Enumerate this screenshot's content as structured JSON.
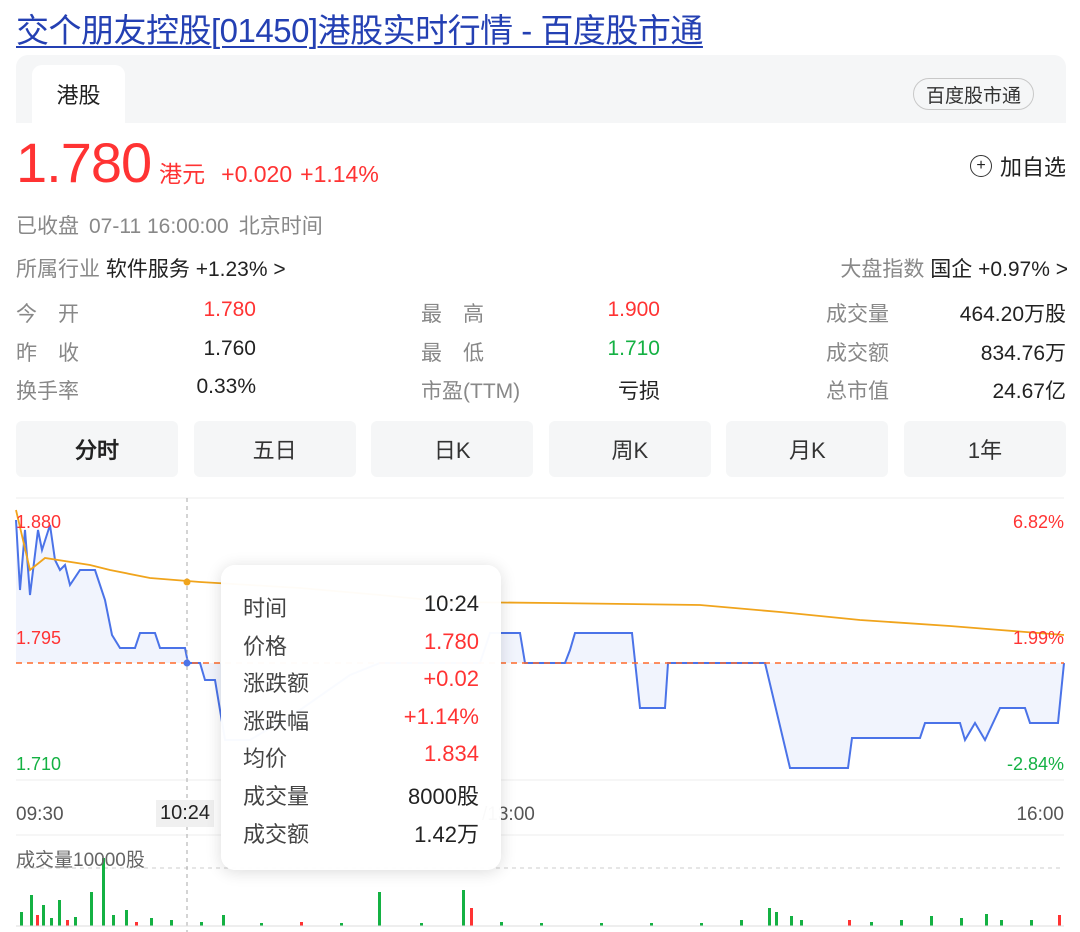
{
  "page_title": "交个朋友控股[01450]港股实时行情 - 百度股市通",
  "tabs": {
    "active": "港股",
    "badge": "百度股市通"
  },
  "quote": {
    "price": "1.780",
    "currency": "港元",
    "change": "+0.020",
    "change_pct": "+1.14%",
    "add_favorite": "加自选",
    "status": "已收盘",
    "datetime": "07-11 16:00:00",
    "timezone": "北京时间"
  },
  "industry": {
    "label": "所属行业",
    "name": "软件服务",
    "change": "+1.23%",
    "arrow": ">"
  },
  "market_index": {
    "label": "大盘指数",
    "name": "国企",
    "change": "+0.97%",
    "arrow": ">"
  },
  "stats": [
    [
      {
        "label": "今　开",
        "value": "1.780",
        "color": "red"
      },
      {
        "label": "最　高",
        "value": "1.900",
        "color": "red"
      },
      {
        "label": "成交量",
        "value": "464.20万股",
        "color": "dark"
      }
    ],
    [
      {
        "label": "昨　收",
        "value": "1.760",
        "color": "dark"
      },
      {
        "label": "最　低",
        "value": "1.710",
        "color": "green"
      },
      {
        "label": "成交额",
        "value": "834.76万",
        "color": "dark"
      }
    ],
    [
      {
        "label": "换手率",
        "value": "0.33%",
        "color": "dark"
      },
      {
        "label": "市盈(TTM)",
        "value": "亏损",
        "color": "dark"
      },
      {
        "label": "总市值",
        "value": "24.67亿",
        "color": "dark"
      }
    ]
  ],
  "periods": [
    "分时",
    "五日",
    "日K",
    "周K",
    "月K",
    "1年"
  ],
  "chart_axis": {
    "y_left": [
      "1.880",
      "1.795",
      "1.710"
    ],
    "y_right": [
      "6.82%",
      "1.99%",
      "-2.84%"
    ],
    "x": [
      "09:30",
      "10:24",
      "/13:00",
      "16:00"
    ],
    "volume_title": "成交量10000股"
  },
  "tooltip": {
    "rows": [
      {
        "k": "时间",
        "v": "10:24",
        "color": "dark"
      },
      {
        "k": "价格",
        "v": "1.780",
        "color": "red"
      },
      {
        "k": "涨跌额",
        "v": "+0.02",
        "color": "red"
      },
      {
        "k": "涨跌幅",
        "v": "+1.14%",
        "color": "red"
      },
      {
        "k": "均价",
        "v": "1.834",
        "color": "red"
      },
      {
        "k": "成交量",
        "v": "8000股",
        "color": "dark"
      },
      {
        "k": "成交额",
        "v": "1.42万",
        "color": "dark"
      }
    ]
  },
  "colors": {
    "up": "#ff3333",
    "down": "#14b143",
    "price_line": "#4b73e8",
    "avg_line": "#f0a41c",
    "link": "#2440b3"
  },
  "chart_data": {
    "type": "line",
    "x_range": [
      "09:30",
      "16:00"
    ],
    "ylim": [
      1.71,
      1.88
    ],
    "prev_close": 1.76,
    "series": [],
    "volume": {
      "type": "bar"
    }
  }
}
